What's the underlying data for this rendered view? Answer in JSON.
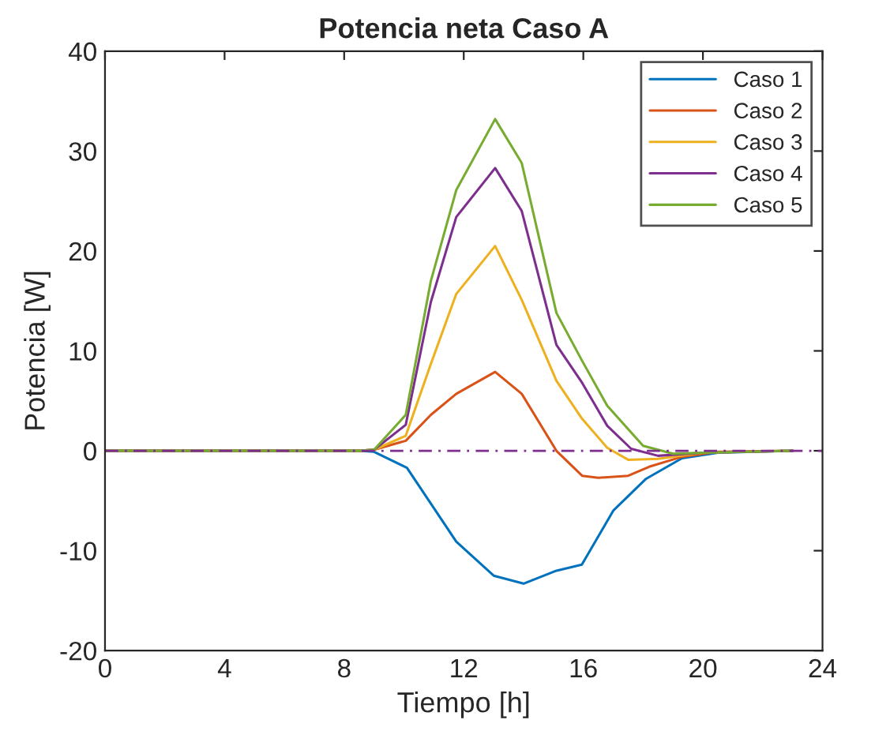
{
  "chart_data": {
    "type": "line",
    "title": "Potencia neta Caso A",
    "xlabel": "Tiempo [h]",
    "ylabel": "Potencia [W]",
    "xlim": [
      0,
      24
    ],
    "xticks": [
      0,
      4,
      8,
      12,
      16,
      20,
      24
    ],
    "ylim": [
      -20,
      40
    ],
    "yticks": [
      -20,
      -10,
      0,
      10,
      20,
      30,
      40
    ],
    "grid": false,
    "legend": "top right",
    "line_style": "solid",
    "series": [
      {
        "name": "Caso 1",
        "color": "#0072bd",
        "x": [
          0,
          8.5,
          9.0,
          10.1,
          11.75,
          13.0,
          14.0,
          15.1,
          15.95,
          17.0,
          18.1,
          19.3,
          20.5,
          23
        ],
        "values": [
          0,
          0,
          -0.1,
          -1.7,
          -9.1,
          -12.5,
          -13.3,
          -12.0,
          -11.4,
          -6.0,
          -2.8,
          -0.75,
          -0.2,
          0
        ]
      },
      {
        "name": "Caso 2",
        "color": "#d95319",
        "x": [
          0,
          8.5,
          9.0,
          10.06,
          10.9,
          11.75,
          13.05,
          13.94,
          15.1,
          15.96,
          16.5,
          17.5,
          18.2,
          19.3,
          20.5,
          23
        ],
        "values": [
          0,
          0,
          0.1,
          1.0,
          3.6,
          5.7,
          7.9,
          5.7,
          0.0,
          -2.5,
          -2.7,
          -2.5,
          -1.6,
          -0.6,
          -0.1,
          0
        ]
      },
      {
        "name": "Caso 3",
        "color": "#edb120",
        "x": [
          0,
          8.5,
          9.0,
          10.06,
          10.9,
          11.75,
          13.05,
          13.94,
          15.1,
          15.96,
          16.8,
          17.5,
          18.5,
          20,
          23
        ],
        "values": [
          0,
          0,
          0.1,
          1.5,
          8.7,
          15.7,
          20.5,
          15.1,
          7.0,
          3.2,
          0.3,
          -0.9,
          -0.8,
          -0.2,
          0
        ]
      },
      {
        "name": "Caso 4",
        "color": "#7e2f8e",
        "x": [
          0,
          8.5,
          9.0,
          10.06,
          10.9,
          11.75,
          13.05,
          13.94,
          15.1,
          15.96,
          16.8,
          17.6,
          18.5,
          20,
          23
        ],
        "values": [
          0,
          0,
          0.1,
          2.6,
          14.9,
          23.4,
          28.3,
          24.0,
          10.6,
          6.8,
          2.5,
          0.2,
          -0.5,
          -0.2,
          0
        ]
      },
      {
        "name": "Caso 5",
        "color": "#77ac30",
        "x": [
          0,
          8.5,
          9.0,
          10.06,
          10.9,
          11.75,
          13.05,
          13.94,
          15.1,
          15.96,
          16.8,
          18.0,
          19.0,
          20,
          23
        ],
        "values": [
          0,
          0,
          0.1,
          3.6,
          17.0,
          26.1,
          33.2,
          28.8,
          13.8,
          9.0,
          4.5,
          0.5,
          -0.3,
          -0.2,
          0
        ]
      }
    ],
    "ref_lines": [
      {
        "axis": "y",
        "value": 0,
        "color": "#7e2f8e",
        "line_style": "dashed"
      }
    ]
  }
}
